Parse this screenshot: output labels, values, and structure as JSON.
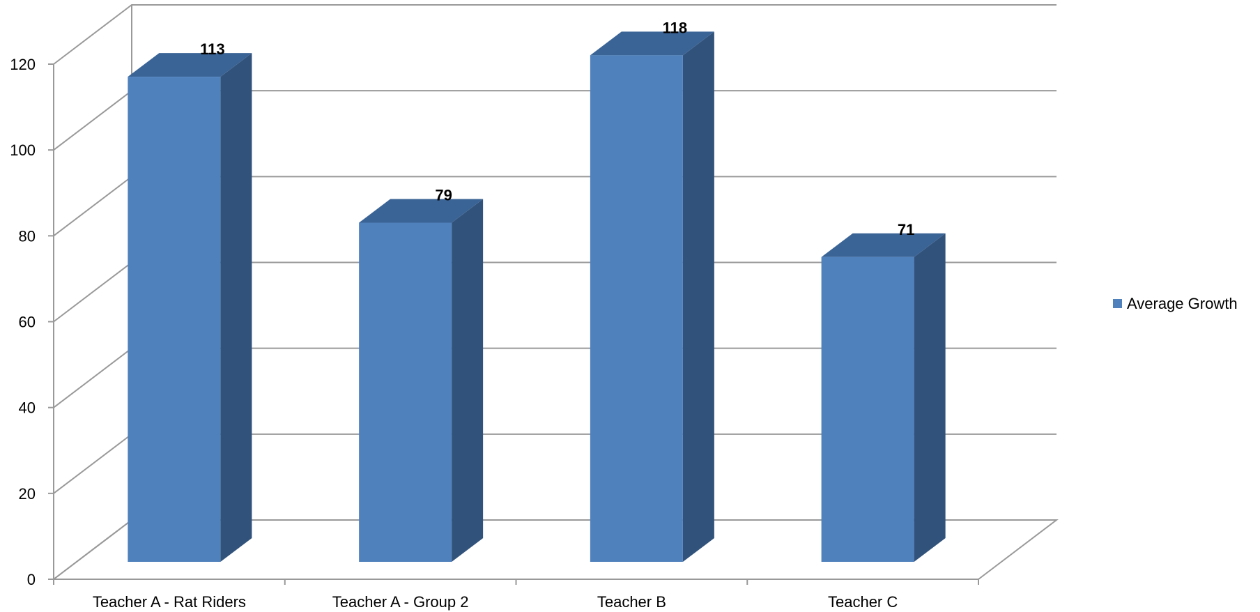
{
  "chart_data": {
    "type": "bar",
    "three_d": true,
    "categories": [
      "Teacher A - Rat Riders",
      "Teacher A - Group 2",
      "Teacher B",
      "Teacher C"
    ],
    "series": [
      {
        "name": "Average Growth",
        "values": [
          113,
          79,
          118,
          71
        ]
      }
    ],
    "data_labels": [
      "113",
      "79",
      "118",
      "71"
    ],
    "ylim": [
      0,
      120
    ],
    "yticks": [
      0,
      20,
      40,
      60,
      80,
      100,
      120
    ],
    "ytick_labels": [
      "0",
      "20",
      "40",
      "60",
      "80",
      "100",
      "120"
    ],
    "grid": true,
    "legend_position": "right",
    "colors": {
      "bar_front": "#4F81BD",
      "bar_side": "#31527A",
      "bar_top": "#3B6496",
      "grid": "#999999"
    }
  }
}
